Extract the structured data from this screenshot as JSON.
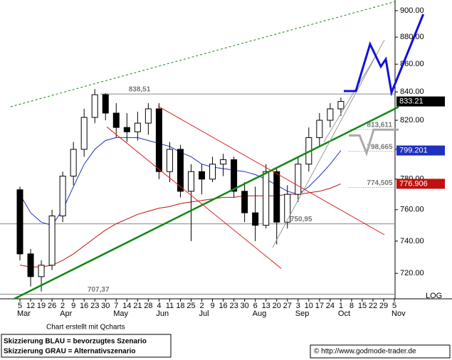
{
  "chart_data": {
    "type": "candlestick",
    "log": true,
    "scale_label": "LOG",
    "categories": [
      "5",
      "12",
      "19",
      "26",
      "2",
      "9",
      "16",
      "23",
      "30",
      "7",
      "14",
      "21",
      "28",
      "4",
      "11",
      "18",
      "25",
      "2",
      "9",
      "16",
      "23",
      "30",
      "6",
      "13",
      "20",
      "27",
      "3",
      "10",
      "17",
      "24",
      "1",
      "8",
      "15",
      "22",
      "29",
      "5"
    ],
    "months": [
      {
        "label": "Mar",
        "index": 0
      },
      {
        "label": "Apr",
        "index": 4
      },
      {
        "label": "May",
        "index": 9
      },
      {
        "label": "Jun",
        "index": 13
      },
      {
        "label": "Jul",
        "index": 17
      },
      {
        "label": "Aug",
        "index": 22
      },
      {
        "label": "Sep",
        "index": 26
      },
      {
        "label": "Oct",
        "index": 30
      },
      {
        "label": "Nov",
        "index": 35
      }
    ],
    "open": [
      773,
      732,
      718,
      725,
      756,
      782,
      800,
      822,
      838,
      825,
      815,
      812,
      818,
      828,
      785,
      800,
      772,
      785,
      780,
      790,
      793,
      772,
      758,
      750,
      785,
      752,
      770,
      790,
      808,
      820,
      828,
      null,
      null,
      null,
      null,
      null
    ],
    "high": [
      775,
      735,
      728,
      760,
      785,
      805,
      828,
      842,
      839,
      832,
      825,
      826,
      832,
      832,
      805,
      803,
      790,
      790,
      795,
      797,
      795,
      778,
      775,
      790,
      788,
      776,
      795,
      815,
      825,
      832,
      836,
      null,
      null,
      null,
      null,
      null
    ],
    "low": [
      728,
      712,
      709,
      722,
      752,
      776,
      795,
      818,
      820,
      808,
      805,
      806,
      810,
      780,
      778,
      768,
      740,
      770,
      778,
      782,
      768,
      752,
      740,
      748,
      738,
      748,
      765,
      785,
      802,
      815,
      823,
      null,
      null,
      null,
      null,
      null
    ],
    "close": [
      732,
      718,
      725,
      756,
      782,
      800,
      822,
      838,
      825,
      815,
      812,
      818,
      828,
      785,
      800,
      772,
      785,
      780,
      790,
      793,
      772,
      758,
      750,
      785,
      752,
      770,
      790,
      808,
      820,
      828,
      833.21,
      null,
      null,
      null,
      null,
      null
    ],
    "up_color": "#ffffff",
    "down_color": "#000000",
    "series": [
      {
        "color": "#1f2fbf",
        "values": [
          770,
          758,
          752,
          750,
          760,
          775,
          790,
          800,
          806,
          808,
          808,
          808,
          806,
          804,
          802,
          798,
          795,
          790,
          788,
          787,
          786,
          785,
          783,
          780,
          776,
          772,
          770,
          775,
          782,
          790,
          799.201,
          null,
          null,
          null,
          null,
          null
        ]
      },
      {
        "color": "#c01010",
        "values": [
          725,
          724,
          724,
          725,
          728,
          732,
          737,
          742,
          747,
          751,
          754,
          757,
          759,
          761,
          762,
          764,
          765,
          766,
          767,
          768,
          768,
          769,
          769,
          769,
          769,
          770,
          770,
          771,
          772,
          774,
          776.906,
          null,
          null,
          null,
          null,
          null
        ]
      }
    ],
    "last_color": "#000000",
    "levels": [
      {
        "value": 838.51,
        "label": "838,51",
        "from": 7.5,
        "style": "solid"
      },
      {
        "value": 813.611,
        "label": "813,611",
        "from": 30.7,
        "style": "dotted"
      },
      {
        "value": 798.665,
        "label": "798,665",
        "from": 30.7,
        "style": "dotted"
      },
      {
        "value": 774.505,
        "label": "774,505",
        "from": 30.7,
        "style": "dotted"
      },
      {
        "value": 750.95,
        "label": "750,95",
        "from": -2,
        "style": "solid"
      },
      {
        "value": 707.37,
        "label": "707,37",
        "from": -2,
        "style": "solid"
      }
    ],
    "lines": [
      {
        "color": "#118811",
        "style": "thick",
        "x": [
          -0.53,
          35.4
        ],
        "values": [
          704.6,
          829.4
        ]
      },
      {
        "color": "#118811",
        "style": "dotted",
        "x": [
          -0.87,
          35.06
        ],
        "values": [
          829.5,
          907
        ]
      },
      {
        "color": "#dd2222",
        "style": "thin",
        "x": [
          12.9,
          34.07
        ],
        "values": [
          829.9,
          744
        ]
      },
      {
        "color": "#dd2222",
        "style": "thin",
        "x": [
          8.12,
          24.42
        ],
        "values": [
          815.4,
          723
        ]
      },
      {
        "color": "#999999",
        "style": "thin",
        "x": [
          23.62,
          34.07
        ],
        "values": [
          736,
          878
        ]
      },
      {
        "color": "#999999",
        "style": "thin",
        "x": [
          28.4,
          33.4
        ],
        "values": [
          805,
          868
        ]
      },
      {
        "color": "#1111dd",
        "style": "scenario",
        "x": [
          30.27,
          31.4,
          32.73,
          33.73,
          34.2,
          34.73,
          37.7
        ],
        "values": [
          840.6,
          840.6,
          874.8,
          858.3,
          863.6,
          839.5,
          897.3
        ]
      },
      {
        "color": "#aaaaaa",
        "style": "scenario",
        "x": [
          30.74,
          31.74,
          32.4,
          33.07,
          35.4
        ],
        "values": [
          809.5,
          809.5,
          797.4,
          813.5,
          813.5
        ]
      }
    ],
    "ylim": [
      704.6,
      908.2
    ],
    "yticks": [
      {
        "value": 720,
        "label": "720.00"
      },
      {
        "value": 740,
        "label": "740.00"
      },
      {
        "value": 760,
        "label": "760.00"
      },
      {
        "value": 780,
        "label": "780.00"
      },
      {
        "value": 800,
        "label": "800.00"
      },
      {
        "value": 820,
        "label": "820.00"
      },
      {
        "value": 840,
        "label": "840.00"
      },
      {
        "value": 860,
        "label": "860.00"
      },
      {
        "value": 880,
        "label": "880.00"
      },
      {
        "value": 900,
        "label": "900.00"
      }
    ],
    "note": "Chart erstellt mit Qcharts",
    "legend_notes": [
      "Skizzierung BLAU = bevorzugtes Szenario",
      "Skizzierung GRAU = Alternativszenario"
    ],
    "source": "© http://www.godmode-trader.de"
  }
}
